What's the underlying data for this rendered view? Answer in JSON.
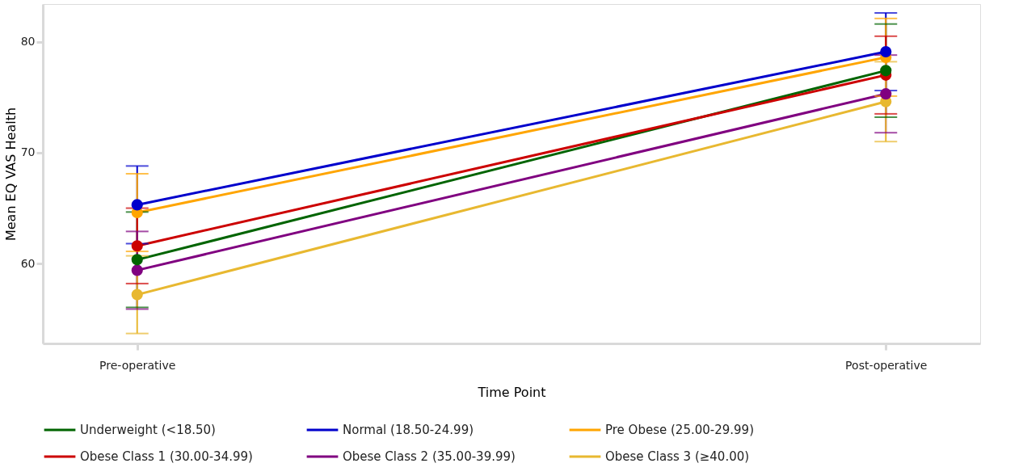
{
  "chart_data": {
    "type": "line",
    "xlabel": "Time Point",
    "ylabel": "Mean EQ VAS Health",
    "categories": [
      "Pre-operative",
      "Post-operative"
    ],
    "ylim": [
      52.8,
      83.4
    ],
    "yticks": [
      60,
      70,
      80
    ],
    "grid": false,
    "legend": "bottom",
    "marker": "circle",
    "line_style": "solid",
    "series": [
      {
        "name": "Underweight (<18.50)",
        "color": "#006400",
        "values": [
          60.35,
          77.4
        ],
        "errors": [
          4.3,
          4.2
        ]
      },
      {
        "name": "Normal (18.50-24.99)",
        "color": "#0000cc",
        "values": [
          65.3,
          79.1
        ],
        "errors": [
          3.5,
          3.5
        ]
      },
      {
        "name": "Pre Obese (25.00-29.99)",
        "color": "#ffa500",
        "values": [
          64.6,
          78.6
        ],
        "errors": [
          3.5,
          3.5
        ]
      },
      {
        "name": "Obese Class 1 (30.00-34.99)",
        "color": "#cc0000",
        "values": [
          61.6,
          77.0
        ],
        "errors": [
          3.4,
          3.5
        ]
      },
      {
        "name": "Obese Class 2 (35.00-39.99)",
        "color": "#800080",
        "values": [
          59.4,
          75.3
        ],
        "errors": [
          3.5,
          3.5
        ]
      },
      {
        "name": "Obese Class 3 (≥40.00)",
        "color": "#e8b830",
        "values": [
          57.2,
          74.6
        ],
        "errors": [
          3.5,
          3.6
        ]
      }
    ]
  }
}
